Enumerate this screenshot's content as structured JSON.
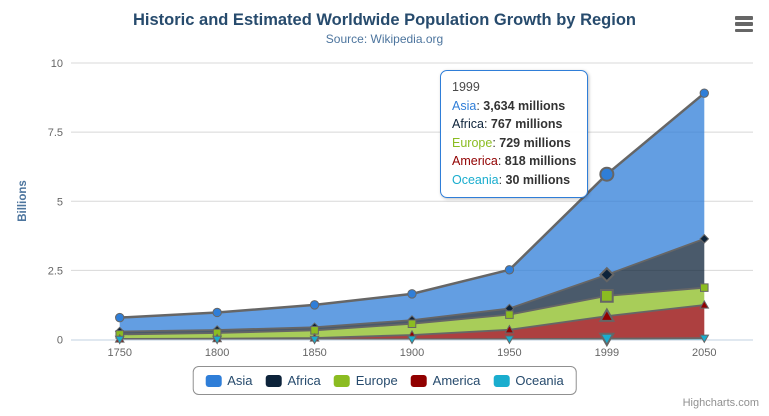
{
  "chart_data": {
    "type": "area",
    "stacking": "normal",
    "title": "Historic and Estimated Worldwide Population Growth by Region",
    "subtitle": "Source: Wikipedia.org",
    "categories": [
      "1750",
      "1800",
      "1850",
      "1900",
      "1950",
      "1999",
      "2050"
    ],
    "series": [
      {
        "name": "Asia",
        "color": "#2f7ed8",
        "marker": "circle",
        "values": [
          502,
          635,
          809,
          947,
          1402,
          3634,
          5268
        ]
      },
      {
        "name": "Africa",
        "color": "#0d233a",
        "marker": "diamond",
        "values": [
          106,
          107,
          111,
          133,
          221,
          767,
          1766
        ]
      },
      {
        "name": "Europe",
        "color": "#8bbc21",
        "marker": "square",
        "values": [
          163,
          203,
          276,
          408,
          547,
          729,
          628
        ]
      },
      {
        "name": "America",
        "color": "#910000",
        "marker": "triangle",
        "values": [
          18,
          31,
          54,
          156,
          339,
          818,
          1201
        ]
      },
      {
        "name": "Oceania",
        "color": "#1aadce",
        "marker": "triangle-down",
        "values": [
          2,
          2,
          2,
          6,
          13,
          30,
          46
        ]
      }
    ],
    "unit": "millions",
    "xlabel": "",
    "ylabel": "Billions",
    "ylim": [
      0,
      10
    ],
    "yticks": [
      0,
      2.5,
      5,
      7.5,
      10
    ],
    "grid": true,
    "legend_position": "bottom-center",
    "hover_index": 5,
    "hover_category": "1999"
  },
  "tooltip": {
    "header": "1999",
    "rows": [
      {
        "name": "Asia",
        "color": "#2f7ed8",
        "value": "3,634 millions"
      },
      {
        "name": "Africa",
        "color": "#0d233a",
        "value": "767 millions"
      },
      {
        "name": "Europe",
        "color": "#8bbc21",
        "value": "729 millions"
      },
      {
        "name": "America",
        "color": "#910000",
        "value": "818 millions"
      },
      {
        "name": "Oceania",
        "color": "#1aadce",
        "value": "30 millions"
      }
    ]
  },
  "credits": "Highcharts.com",
  "icons": {
    "menu": "hamburger-icon"
  },
  "colors": {
    "title": "#274b6d",
    "subtitle": "#4d759e",
    "axis_labels": "#666666",
    "axis_title": "#4d759e",
    "grid": "#d8d8d8",
    "axis_line": "#c0d0e0",
    "area_outline": "#666666",
    "legend_border": "#909090",
    "legend_text": "#274b6d",
    "tooltip_border": "#2f7ed8",
    "credits": "#909090"
  }
}
